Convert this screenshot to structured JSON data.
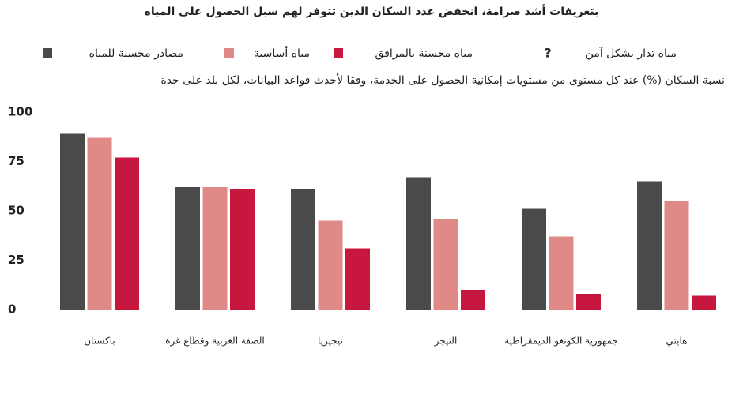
{
  "chart_data": {
    "type": "bar",
    "title": "بتعريفات أشد صرامة، انخفض عدد السكان الذين تتوفر لهم سبل الحصول على المياه",
    "subtitle": "نسبة السكان (%) عند كل مستوى من مستويات إمكانية الحصول على الخدمة، وفقا لأحدث قواعد البيانات، لكل بلد على حدة",
    "categories": [
      "باكستان",
      "الضفة الغربية وقطاع غزة",
      "نيجيريا",
      "النيجر",
      "جمهورية الكونغو الديمقراطية",
      "هايتي"
    ],
    "series": [
      {
        "name": "مصادر محسنة للمياه",
        "color": "#4a4a4a",
        "values": [
          89,
          62,
          61,
          67,
          51,
          65
        ]
      },
      {
        "name": "مياه أساسية",
        "color": "#e08a88",
        "values": [
          87,
          62,
          45,
          46,
          37,
          55
        ]
      },
      {
        "name": "مياه محسنة بالمرافق",
        "color": "#c8173f",
        "values": [
          77,
          61,
          31,
          10,
          8,
          7
        ]
      },
      {
        "name": "مياه تدار بشكل آمن",
        "marker": "?",
        "values": [
          null,
          null,
          null,
          null,
          null,
          null
        ]
      }
    ],
    "ylim": [
      0,
      100
    ],
    "yticks": [
      0,
      25,
      50,
      75,
      100
    ],
    "grid": false
  }
}
